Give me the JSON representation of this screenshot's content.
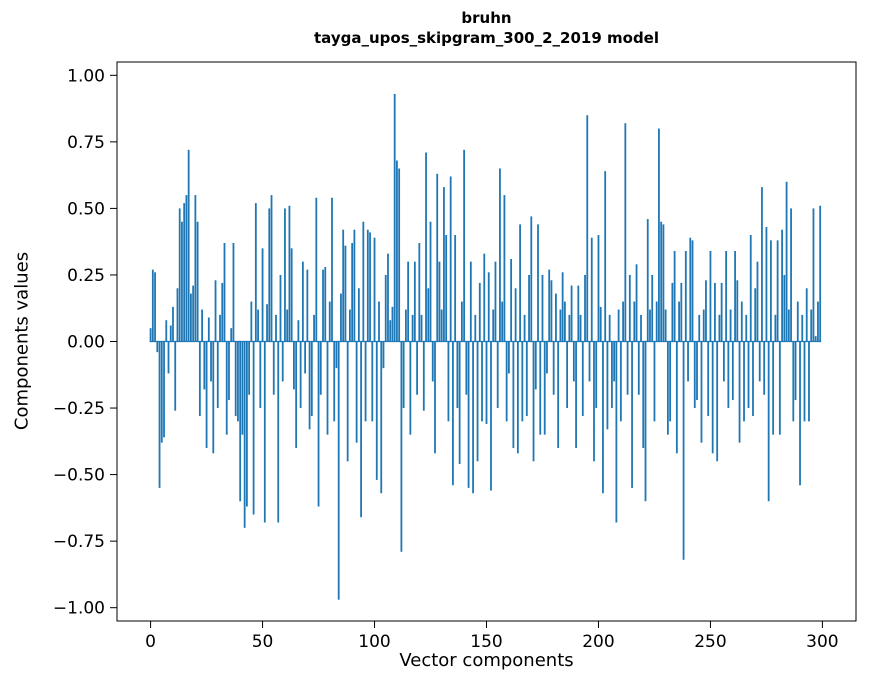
{
  "page": {
    "background": "#ffffff"
  },
  "chart_data": {
    "type": "bar",
    "title_line1": "bruhn",
    "title_line2": "tayga_upos_skipgram_300_2_2019 model",
    "xlabel": "Vector components",
    "ylabel": "Components values",
    "bar_color": "#1f77b4",
    "spine_color": "#000000",
    "xlim": [
      -15,
      315
    ],
    "ylim": [
      -1.05,
      1.05
    ],
    "grid": false,
    "legend": "none",
    "yticks": [
      {
        "v": 1.0,
        "label": "1.00"
      },
      {
        "v": 0.75,
        "label": "0.75"
      },
      {
        "v": 0.5,
        "label": "0.50"
      },
      {
        "v": 0.25,
        "label": "0.25"
      },
      {
        "v": 0.0,
        "label": "0.00"
      },
      {
        "v": -0.25,
        "label": "−0.25"
      },
      {
        "v": -0.5,
        "label": "−0.50"
      },
      {
        "v": -0.75,
        "label": "−0.75"
      },
      {
        "v": -1.0,
        "label": "−1.00"
      }
    ],
    "xticks": [
      {
        "v": 0,
        "label": "0"
      },
      {
        "v": 50,
        "label": "50"
      },
      {
        "v": 100,
        "label": "100"
      },
      {
        "v": 150,
        "label": "150"
      },
      {
        "v": 200,
        "label": "200"
      },
      {
        "v": 250,
        "label": "250"
      },
      {
        "v": 300,
        "label": "300"
      }
    ],
    "values": [
      0.05,
      0.27,
      0.26,
      -0.04,
      -0.55,
      -0.38,
      -0.36,
      0.08,
      -0.12,
      0.06,
      0.13,
      -0.26,
      0.2,
      0.5,
      0.45,
      0.52,
      0.55,
      0.72,
      0.18,
      0.21,
      0.55,
      0.45,
      -0.28,
      0.12,
      -0.18,
      -0.4,
      0.09,
      -0.15,
      -0.42,
      0.23,
      -0.25,
      0.1,
      0.22,
      0.37,
      -0.35,
      -0.22,
      0.05,
      0.37,
      -0.28,
      -0.3,
      -0.6,
      -0.35,
      -0.7,
      -0.62,
      -0.2,
      0.15,
      -0.65,
      0.52,
      0.12,
      -0.25,
      0.35,
      -0.68,
      0.14,
      0.5,
      0.55,
      -0.2,
      0.1,
      -0.68,
      0.25,
      -0.15,
      0.5,
      0.12,
      0.51,
      0.35,
      -0.18,
      -0.4,
      0.08,
      -0.25,
      0.3,
      -0.12,
      0.27,
      -0.33,
      -0.28,
      0.1,
      0.54,
      -0.62,
      -0.2,
      0.27,
      0.28,
      -0.35,
      0.15,
      0.54,
      -0.3,
      -0.1,
      -0.97,
      0.18,
      0.42,
      0.36,
      -0.45,
      0.12,
      0.37,
      0.42,
      -0.38,
      0.2,
      -0.66,
      0.45,
      -0.3,
      0.42,
      0.41,
      -0.3,
      0.39,
      -0.52,
      0.15,
      -0.57,
      -0.1,
      0.25,
      0.33,
      0.08,
      0.13,
      0.93,
      0.68,
      0.65,
      -0.79,
      -0.25,
      0.12,
      0.3,
      -0.35,
      0.1,
      0.3,
      -0.2,
      0.37,
      0.1,
      -0.26,
      0.71,
      0.2,
      0.45,
      -0.15,
      -0.42,
      0.63,
      0.3,
      0.12,
      0.58,
      0.4,
      -0.3,
      0.62,
      -0.54,
      0.4,
      -0.25,
      -0.46,
      0.15,
      0.72,
      -0.2,
      -0.55,
      0.3,
      -0.57,
      0.1,
      -0.45,
      0.22,
      -0.3,
      0.33,
      -0.31,
      0.26,
      -0.56,
      0.12,
      0.3,
      -0.25,
      0.65,
      0.15,
      0.55,
      -0.3,
      -0.12,
      0.31,
      -0.4,
      0.2,
      -0.42,
      0.44,
      -0.3,
      0.1,
      -0.28,
      0.25,
      0.47,
      -0.45,
      -0.18,
      0.44,
      -0.35,
      0.25,
      -0.35,
      -0.12,
      0.27,
      0.23,
      -0.2,
      0.18,
      -0.4,
      0.12,
      0.26,
      0.15,
      -0.25,
      0.1,
      0.21,
      -0.15,
      -0.4,
      0.21,
      0.1,
      -0.28,
      0.25,
      0.85,
      -0.15,
      0.39,
      -0.45,
      -0.25,
      0.4,
      0.13,
      -0.57,
      0.64,
      -0.33,
      0.1,
      -0.25,
      -0.15,
      -0.68,
      0.12,
      -0.3,
      0.15,
      0.82,
      -0.2,
      0.25,
      -0.55,
      0.15,
      0.29,
      -0.2,
      0.1,
      -0.4,
      -0.6,
      0.46,
      0.12,
      0.25,
      -0.3,
      0.15,
      0.8,
      0.45,
      0.44,
      0.12,
      -0.35,
      -0.3,
      0.22,
      0.34,
      -0.42,
      0.15,
      0.22,
      -0.82,
      0.34,
      -0.15,
      0.39,
      0.38,
      -0.25,
      -0.22,
      0.1,
      -0.38,
      0.12,
      0.23,
      -0.28,
      0.34,
      -0.42,
      0.22,
      -0.45,
      0.1,
      0.22,
      -0.15,
      0.34,
      -0.25,
      0.12,
      -0.22,
      0.34,
      0.23,
      -0.38,
      0.15,
      -0.3,
      0.1,
      -0.25,
      0.4,
      -0.28,
      0.2,
      0.3,
      -0.15,
      0.58,
      -0.2,
      0.43,
      -0.6,
      0.38,
      -0.35,
      0.1,
      0.38,
      -0.35,
      0.42,
      0.25,
      0.6,
      0.12,
      0.5,
      -0.3,
      -0.22,
      0.15,
      -0.54,
      0.1,
      -0.3,
      0.2,
      -0.3,
      0.12,
      0.5,
      0.02,
      0.15,
      0.51
    ]
  }
}
